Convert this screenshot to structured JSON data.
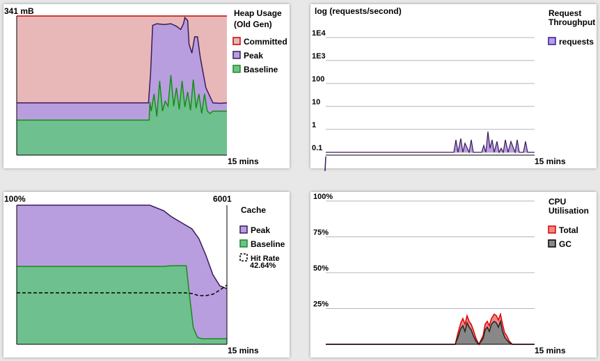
{
  "charts": {
    "heap": {
      "title_line1": "Heap Usage",
      "title_line2": "(Old Gen)",
      "y_max_label": "341 mB",
      "x_label": "15 mins"
    },
    "requests": {
      "ylabel": "log (requests/second)",
      "title_line1": "Request",
      "title_line2": "Throughput",
      "x_label": "15 mins"
    },
    "cache": {
      "title": "Cache",
      "y_max_label": "100%",
      "right_label": "6001",
      "x_label": "15 mins",
      "hit_rate_value": "42.64%"
    },
    "cpu": {
      "title_line1": "CPU",
      "title_line2": "Utilisation",
      "x_label": "15 mins"
    }
  },
  "colors": {
    "committed_fill": "#e8b8b8",
    "committed_line": "#c80000",
    "peak_fill": "#b89ede",
    "peak_line": "#3a1a5a",
    "baseline_fill": "#6ec08e",
    "baseline_line": "#1a8a1a",
    "requests_fill": "#b89ede",
    "requests_line": "#3a1a5a",
    "cpu_total_fill": "#ee8888",
    "cpu_total_line": "#dd0000",
    "cpu_gc_fill": "#888888",
    "cpu_gc_line": "#222222"
  },
  "chart_data": [
    {
      "id": "heap",
      "type": "area",
      "title": "Heap Usage (Old Gen)",
      "xlabel": "15 mins",
      "ylabel": "341 mB",
      "ylim": [
        0,
        341
      ],
      "x_range_minutes": [
        0,
        15
      ],
      "legend_position": "right",
      "series": [
        {
          "name": "Committed",
          "color": "#e8b8b8",
          "x": [
            0,
            15
          ],
          "values": [
            341,
            341
          ]
        },
        {
          "name": "Peak",
          "color": "#b89ede",
          "x": [
            0,
            9.4,
            9.55,
            9.7,
            10,
            10.5,
            11,
            11.4,
            11.7,
            11.9,
            12,
            12.2,
            12.3,
            12.5,
            12.7,
            12.9,
            13.1,
            13.5,
            14,
            14.5,
            15
          ],
          "values": [
            128,
            128,
            200,
            318,
            322,
            320,
            322,
            316,
            308,
            322,
            337,
            330,
            272,
            250,
            290,
            290,
            240,
            165,
            128,
            127,
            128
          ]
        },
        {
          "name": "Baseline",
          "color": "#6ec08e",
          "x": [
            0,
            9.45,
            9.5,
            9.6,
            9.8,
            10,
            10.2,
            10.4,
            10.6,
            10.8,
            11,
            11.2,
            11.4,
            11.6,
            11.8,
            12,
            12.2,
            12.4,
            12.6,
            12.8,
            13,
            13.2,
            13.4,
            13.6,
            13.8,
            14,
            15
          ],
          "values": [
            86,
            86,
            130,
            108,
            150,
            95,
            182,
            108,
            132,
            120,
            196,
            120,
            165,
            112,
            182,
            118,
            155,
            110,
            185,
            115,
            150,
            102,
            150,
            108,
            102,
            108,
            108
          ]
        }
      ]
    },
    {
      "id": "requests",
      "type": "area",
      "title": "Request Throughput",
      "ylabel": "log (requests/second)",
      "xlabel": "15 mins",
      "y_scale": "log",
      "y_ticks": [
        "0.1",
        "1",
        "10",
        "100",
        "1E3",
        "1E4"
      ],
      "ylim": [
        0.1,
        10000
      ],
      "x_range_minutes": [
        0,
        15
      ],
      "legend_position": "right",
      "series": [
        {
          "name": "requests",
          "color": "#b89ede",
          "x": [
            0,
            9.2,
            9.35,
            9.5,
            9.7,
            9.85,
            10,
            10.3,
            10.45,
            10.6,
            11.2,
            11.35,
            11.5,
            11.65,
            11.8,
            11.95,
            12.1,
            12.3,
            12.45,
            12.6,
            12.75,
            12.9,
            13.1,
            13.3,
            13.6,
            13.75,
            13.9,
            14.2,
            14.35,
            14.5,
            15
          ],
          "values": [
            0.1,
            0.1,
            0.35,
            0.1,
            0.4,
            0.1,
            0.25,
            0.1,
            0.35,
            0.1,
            0.1,
            0.2,
            0.1,
            0.8,
            0.15,
            0.35,
            0.1,
            0.3,
            0.1,
            0.15,
            0.1,
            0.35,
            0.1,
            0.3,
            0.1,
            0.35,
            0.1,
            0.1,
            0.3,
            0.1,
            0.1
          ]
        }
      ]
    },
    {
      "id": "cache",
      "type": "area",
      "title": "Cache",
      "xlabel": "15 mins",
      "ylabel_left": "100%",
      "ylabel_right": "6001",
      "ylim": [
        0,
        100
      ],
      "x_range_minutes": [
        0,
        15
      ],
      "legend_position": "right",
      "series": [
        {
          "name": "Peak",
          "color": "#b89ede",
          "x": [
            0,
            9.5,
            10.5,
            11,
            11.5,
            12,
            12.5,
            13,
            13.5,
            14,
            14.5,
            15
          ],
          "values": [
            100,
            100,
            96,
            92,
            89,
            86,
            83,
            76,
            64,
            50,
            42,
            40
          ]
        },
        {
          "name": "Baseline",
          "color": "#6ec08e",
          "x": [
            0,
            10,
            10.5,
            11,
            11.5,
            12,
            12.1,
            12.3,
            12.6,
            12.9,
            13.2,
            15
          ],
          "values": [
            56,
            56,
            56,
            56.5,
            56.5,
            56.5,
            56.5,
            38,
            12,
            5,
            4,
            4
          ]
        },
        {
          "name": "Hit Rate",
          "style": "dashed",
          "current_value": "42.64%",
          "x": [
            0,
            11,
            12,
            12.5,
            13,
            13.5,
            14,
            14.5,
            15
          ],
          "values": [
            37,
            37,
            37,
            36.5,
            35,
            35,
            36,
            39,
            42.6
          ]
        }
      ]
    },
    {
      "id": "cpu",
      "type": "area",
      "title": "CPU Utilisation",
      "xlabel": "15 mins",
      "y_ticks": [
        "25%",
        "50%",
        "75%",
        "100%"
      ],
      "ylim": [
        0,
        100
      ],
      "x_range_minutes": [
        0,
        15
      ],
      "legend_position": "right",
      "series": [
        {
          "name": "Total",
          "color": "#ee8888",
          "x": [
            0,
            9.3,
            9.5,
            9.7,
            9.85,
            10,
            10.15,
            10.3,
            10.45,
            10.6,
            10.8,
            11,
            11.3,
            11.45,
            11.6,
            11.75,
            11.9,
            12.1,
            12.25,
            12.4,
            12.55,
            12.7,
            12.85,
            13.0,
            13.2,
            13.4,
            15
          ],
          "values": [
            0,
            0,
            8,
            15,
            18,
            14,
            20,
            16,
            14,
            10,
            4,
            0,
            6,
            14,
            16,
            13,
            18,
            21,
            20,
            17,
            21,
            14,
            8,
            6,
            2,
            0,
            0
          ]
        },
        {
          "name": "GC",
          "color": "#888888",
          "x": [
            0,
            9.3,
            9.5,
            9.7,
            9.85,
            10,
            10.15,
            10.3,
            10.45,
            10.6,
            10.8,
            11,
            11.3,
            11.45,
            11.6,
            11.75,
            11.9,
            12.1,
            12.25,
            12.4,
            12.55,
            12.7,
            12.85,
            13.0,
            13.2,
            13.4,
            15
          ],
          "values": [
            0,
            0,
            5,
            11,
            13,
            9,
            15,
            12,
            10,
            6,
            2,
            0,
            4,
            10,
            12,
            9,
            14,
            16,
            15,
            12,
            16,
            9,
            5,
            3,
            1,
            0,
            0
          ]
        }
      ]
    }
  ]
}
